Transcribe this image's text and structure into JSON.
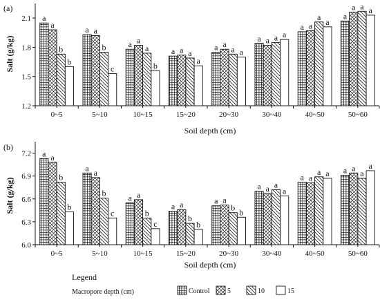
{
  "chart_data": [
    {
      "type": "bar",
      "panel_label": "(a)",
      "ylabel": "Salt (g/kg)",
      "xlabel": "Soil depth (cm)",
      "ylim": [
        1.2,
        2.25
      ],
      "yticks": [
        "1.2",
        "1.5",
        "1.8",
        "2.1"
      ],
      "ytick_values": [
        1.2,
        1.5,
        1.8,
        2.1
      ],
      "categories": [
        "0~5",
        "5~10",
        "10~15",
        "15~20",
        "20~30",
        "30~40",
        "40~50",
        "50~60"
      ],
      "series": [
        {
          "name": "Control",
          "values": [
            2.05,
            1.93,
            1.78,
            1.71,
            1.75,
            1.84,
            1.96,
            2.07
          ]
        },
        {
          "name": "5",
          "values": [
            1.98,
            1.92,
            1.82,
            1.72,
            1.78,
            1.82,
            1.97,
            2.16
          ]
        },
        {
          "name": "10",
          "values": [
            1.73,
            1.75,
            1.74,
            1.69,
            1.73,
            1.85,
            2.06,
            2.17
          ]
        },
        {
          "name": "15",
          "values": [
            1.6,
            1.53,
            1.56,
            1.61,
            1.7,
            1.88,
            2.01,
            2.13
          ]
        }
      ],
      "letters": [
        [
          "a",
          "a",
          "b",
          "b"
        ],
        [
          "a",
          "a",
          "b",
          "c"
        ],
        [
          "a",
          "a",
          "a",
          "b"
        ],
        [
          "a",
          "a",
          "a",
          "a"
        ],
        [
          "a",
          "a",
          "a",
          "a"
        ],
        [
          "a",
          "a",
          "a",
          "a"
        ],
        [
          "a",
          "a",
          "a",
          "a"
        ],
        [
          "a",
          "a",
          "a",
          "a"
        ]
      ]
    },
    {
      "type": "bar",
      "panel_label": "(b)",
      "ylabel": "Salt (g/kg)",
      "xlabel": "Soil depth (cm)",
      "ylim": [
        6.0,
        7.35
      ],
      "yticks": [
        "6.0",
        "6.3",
        "6.6",
        "6.9",
        "7.2"
      ],
      "ytick_values": [
        6.0,
        6.3,
        6.6,
        6.9,
        7.2
      ],
      "categories": [
        "0~5",
        "5~10",
        "10~15",
        "15~20",
        "20~30",
        "30~40",
        "40~50",
        "50~60"
      ],
      "series": [
        {
          "name": "Control",
          "values": [
            7.13,
            6.94,
            6.55,
            6.44,
            6.51,
            6.7,
            6.82,
            6.91
          ]
        },
        {
          "name": "5",
          "values": [
            7.08,
            6.88,
            6.59,
            6.46,
            6.52,
            6.67,
            6.81,
            6.94
          ]
        },
        {
          "name": "10",
          "values": [
            6.82,
            6.61,
            6.35,
            6.28,
            6.42,
            6.72,
            6.89,
            6.87
          ]
        },
        {
          "name": "15",
          "values": [
            6.43,
            6.35,
            6.21,
            6.2,
            6.36,
            6.64,
            6.87,
            6.97
          ]
        }
      ],
      "letters": [
        [
          "a",
          "a",
          "b",
          "b"
        ],
        [
          "a",
          "a",
          "b",
          "c"
        ],
        [
          "a",
          "a",
          "b",
          "c"
        ],
        [
          "a",
          "a",
          "b",
          "b"
        ],
        [
          "a",
          "a",
          "b",
          "b"
        ],
        [
          "a",
          "a",
          "a",
          "a"
        ],
        [
          "a",
          "a",
          "a",
          "a"
        ],
        [
          "a",
          "a",
          "a",
          "a"
        ]
      ]
    }
  ],
  "legend": {
    "title": "Legend",
    "subtitle": "Macropore depth (cm)",
    "items": [
      "Control",
      "5",
      "10",
      "15"
    ]
  }
}
